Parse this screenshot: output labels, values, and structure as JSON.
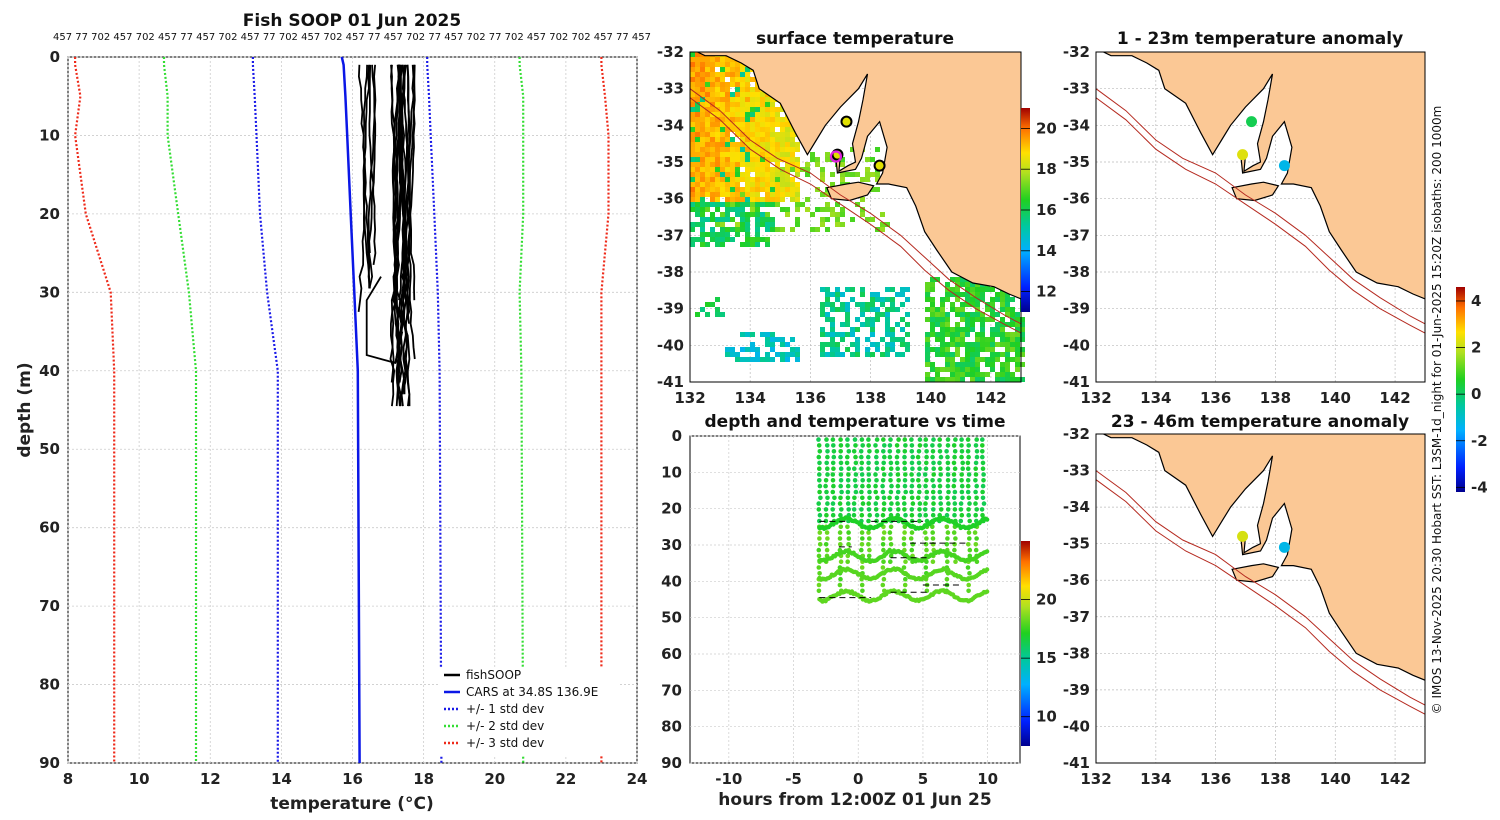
{
  "colors": {
    "land": "#fbc895",
    "cars": "#0b17e6",
    "std1": "#1a1ae8",
    "std2": "#33dd33",
    "std3": "#ee2a1a",
    "fishsoop": "#000000",
    "isobath": "#b52a20"
  },
  "chart_data": [
    {
      "id": "profile",
      "type": "line",
      "title": "Fish SOOP 01 Jun 2025",
      "xlabel": "temperature (°C)",
      "ylabel": "depth (m)",
      "xlim": [
        8,
        24
      ],
      "ylim": [
        90,
        0
      ],
      "xticks": [
        "8",
        "10",
        "12",
        "14",
        "16",
        "18",
        "20",
        "22",
        "24"
      ],
      "yticks": [
        "0",
        "10",
        "20",
        "30",
        "40",
        "50",
        "60",
        "70",
        "80",
        "90"
      ],
      "top_ids": "457 77 702 457 702 457 77 457 702 457 77 702 457 702 457 77 457 702 77 457 702 77 702 457 702 702 457 77 457",
      "grid": true,
      "legend": [
        "fishSOOP",
        "CARS at 34.8S 136.9E",
        "+/- 1 std dev",
        "+/- 2 std dev",
        "+/- 3 std dev"
      ],
      "depth": [
        1,
        5,
        10,
        20,
        30,
        40,
        90
      ],
      "series": [
        {
          "name": "CARS at 34.8S 136.9E",
          "temp": [
            15.75,
            15.8,
            15.85,
            15.95,
            16.05,
            16.15,
            16.2
          ]
        },
        {
          "name": "-1 std",
          "temp": [
            13.2,
            13.25,
            13.3,
            13.4,
            13.6,
            13.9,
            13.9
          ]
        },
        {
          "name": "+1 std",
          "temp": [
            18.1,
            18.15,
            18.2,
            18.3,
            18.4,
            18.45,
            18.5
          ]
        },
        {
          "name": "-2 std",
          "temp": [
            10.7,
            10.8,
            10.8,
            11.1,
            11.4,
            11.6,
            11.6
          ]
        },
        {
          "name": "+2 std",
          "temp": [
            20.7,
            20.8,
            20.8,
            20.8,
            20.7,
            20.75,
            20.8
          ]
        },
        {
          "name": "-3 std",
          "temp": [
            8.2,
            8.35,
            8.2,
            8.5,
            9.2,
            9.3,
            9.3
          ]
        },
        {
          "name": "+3 std",
          "temp": [
            23.0,
            23.1,
            23.2,
            23.2,
            23.0,
            23.0,
            23.0
          ]
        }
      ]
    },
    {
      "id": "sst",
      "type": "heatmap",
      "title": "surface temperature",
      "xlim": [
        132,
        143
      ],
      "ylim": [
        -41,
        -32
      ],
      "xticks": [
        "132",
        "134",
        "136",
        "138",
        "140",
        "142"
      ],
      "yticks": [
        "-32",
        "-33",
        "-34",
        "-35",
        "-36",
        "-37",
        "-38",
        "-39",
        "-40",
        "-41"
      ],
      "colorbar_ticks": [
        "12",
        "14",
        "16",
        "18",
        "20"
      ],
      "colorbar_range": [
        11,
        21
      ]
    },
    {
      "id": "timeseries",
      "type": "scatter",
      "title": "depth and temperature vs time",
      "xlabel": "hours from 12:00Z 01 Jun 25",
      "xlim": [
        -13,
        12.5
      ],
      "ylim": [
        90,
        0
      ],
      "xticks": [
        "-10",
        "-5",
        "0",
        "5",
        "10"
      ],
      "yticks": [
        "0",
        "10",
        "20",
        "30",
        "40",
        "50",
        "60",
        "70",
        "80",
        "90"
      ],
      "colorbar_ticks": [
        "10",
        "15",
        "20"
      ],
      "colorbar_range": [
        7.5,
        25
      ],
      "time_range": [
        -3,
        10
      ],
      "depth_range": [
        1,
        46
      ]
    },
    {
      "id": "anom1",
      "type": "scatter",
      "title": "1 - 23m temperature anomaly",
      "xlim": [
        132,
        143
      ],
      "ylim": [
        -41,
        -32
      ],
      "xticks": [
        "132",
        "134",
        "136",
        "138",
        "140",
        "142"
      ],
      "yticks": [
        "-32",
        "-33",
        "-34",
        "-35",
        "-36",
        "-37",
        "-38",
        "-39",
        "-40",
        "-41"
      ],
      "colorbar_ticks": [
        "4",
        "2",
        "0",
        "-2",
        "-4"
      ],
      "points": [
        {
          "lon": 137.2,
          "lat": -33.9,
          "anomaly": 0.2
        },
        {
          "lon": 136.9,
          "lat": -34.8,
          "anomaly": 2.3
        },
        {
          "lon": 138.3,
          "lat": -35.1,
          "anomaly": -1.3
        }
      ]
    },
    {
      "id": "anom2",
      "type": "scatter",
      "title": "23 - 46m temperature anomaly",
      "xlim": [
        132,
        143
      ],
      "ylim": [
        -41,
        -32
      ],
      "xticks": [
        "132",
        "134",
        "136",
        "138",
        "140",
        "142"
      ],
      "yticks": [
        "-32",
        "-33",
        "-34",
        "-35",
        "-36",
        "-37",
        "-38",
        "-39",
        "-40",
        "-41"
      ],
      "points": [
        {
          "lon": 136.9,
          "lat": -34.8,
          "anomaly": 2.2
        },
        {
          "lon": 138.3,
          "lat": -35.1,
          "anomaly": -1.3
        }
      ]
    }
  ],
  "credit": "© IMOS 13-Nov-2025 20:30 Hobart SST: L3SM-1d_night for 01-Jun-2025 15:20Z isobaths: 200  1000m"
}
